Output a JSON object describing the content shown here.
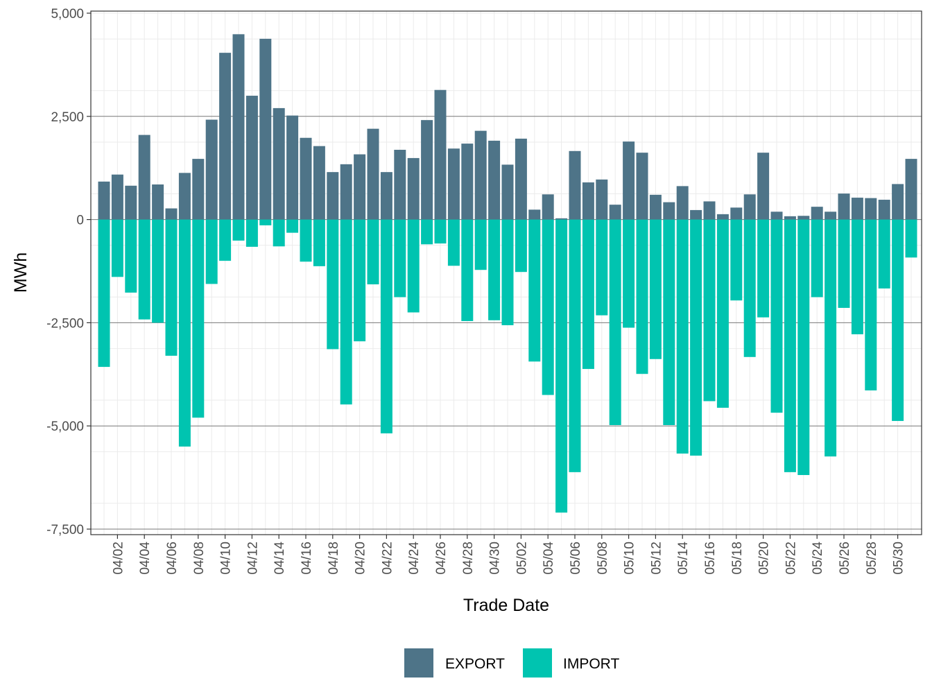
{
  "chart_data": {
    "type": "bar",
    "stacked": true,
    "xlabel": "Trade Date",
    "ylabel": "MWh",
    "ylim": [
      -7500,
      5000
    ],
    "yticks": [
      -7500,
      -5000,
      -2500,
      0,
      2500,
      5000
    ],
    "ytick_labels": [
      "-7,500",
      "-5,000",
      "-2,500",
      "0",
      "2,500",
      "5,000"
    ],
    "grid": true,
    "legend_position": "bottom",
    "categories": [
      "04/01",
      "04/02",
      "04/03",
      "04/04",
      "04/05",
      "04/06",
      "04/07",
      "04/08",
      "04/09",
      "04/10",
      "04/11",
      "04/12",
      "04/13",
      "04/14",
      "04/15",
      "04/16",
      "04/17",
      "04/18",
      "04/19",
      "04/20",
      "04/21",
      "04/22",
      "04/23",
      "04/24",
      "04/25",
      "04/26",
      "04/27",
      "04/28",
      "04/29",
      "04/30",
      "05/01",
      "05/02",
      "05/03",
      "05/04",
      "05/05",
      "05/06",
      "05/07",
      "05/08",
      "05/09",
      "05/10",
      "05/11",
      "05/12",
      "05/13",
      "05/14",
      "05/15",
      "05/16",
      "05/17",
      "05/18",
      "05/19",
      "05/20",
      "05/21",
      "05/22",
      "05/23",
      "05/24",
      "05/25",
      "05/26",
      "05/27",
      "05/28",
      "05/29",
      "05/30",
      "05/31"
    ],
    "xtick_labels": [
      "04/02",
      "04/04",
      "04/06",
      "04/08",
      "04/10",
      "04/12",
      "04/14",
      "04/16",
      "04/18",
      "04/20",
      "04/22",
      "04/24",
      "04/26",
      "04/28",
      "04/30",
      "05/02",
      "05/04",
      "05/06",
      "05/08",
      "05/10",
      "05/12",
      "05/14",
      "05/16",
      "05/18",
      "05/20",
      "05/22",
      "05/24",
      "05/26",
      "05/28",
      "05/30"
    ],
    "series": [
      {
        "name": "EXPORT",
        "color": "#4e7488",
        "values": [
          920,
          1090,
          820,
          2050,
          850,
          270,
          1130,
          1470,
          2420,
          4040,
          4490,
          3000,
          4380,
          2700,
          2520,
          1980,
          1780,
          1150,
          1340,
          1580,
          2200,
          1150,
          1690,
          1490,
          2410,
          3140,
          1720,
          1840,
          2150,
          1910,
          1330,
          1960,
          240,
          610,
          30,
          1660,
          900,
          970,
          360,
          1890,
          1620,
          600,
          420,
          810,
          230,
          440,
          130,
          290,
          610,
          1620,
          190,
          80,
          90,
          310,
          190,
          630,
          530,
          520,
          480,
          860,
          1470
        ]
      },
      {
        "name": "IMPORT",
        "color": "#00c4b0",
        "values": [
          -3570,
          -1390,
          -1770,
          -2420,
          -2500,
          -3300,
          -5500,
          -4800,
          -1560,
          -1000,
          -510,
          -660,
          -140,
          -650,
          -320,
          -1020,
          -1130,
          -3140,
          -4480,
          -2950,
          -1570,
          -5180,
          -1880,
          -2250,
          -600,
          -580,
          -1120,
          -2460,
          -1220,
          -2440,
          -2560,
          -1270,
          -3440,
          -4250,
          -7100,
          -6120,
          -3620,
          -2320,
          -4980,
          -2620,
          -3740,
          -3380,
          -4980,
          -5670,
          -5720,
          -4400,
          -4560,
          -1960,
          -3330,
          -2370,
          -4680,
          -6120,
          -6190,
          -1880,
          -5740,
          -2140,
          -2780,
          -4140,
          -1670,
          -4880,
          -920
        ]
      }
    ]
  }
}
